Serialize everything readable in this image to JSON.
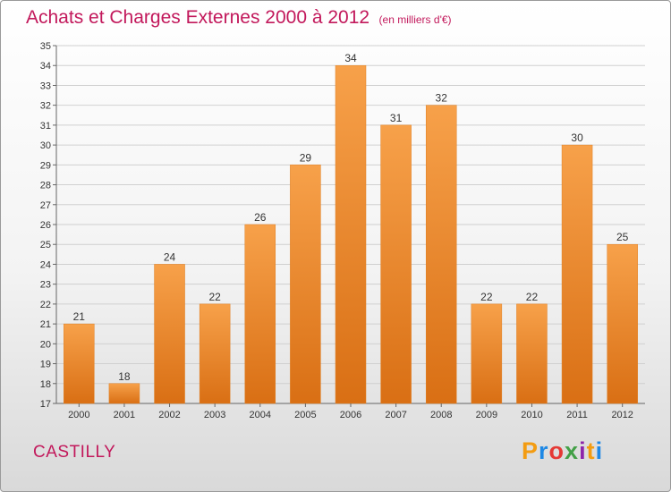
{
  "header": {
    "title": "Achats et Charges Externes 2000 à 2012",
    "unit": "(en milliers d'€)"
  },
  "footer": {
    "commune": "CASTILLY",
    "brand": "Proxiti",
    "brand_colors": [
      "#f39c12",
      "#1e88e5",
      "#e53935",
      "#43a047",
      "#8e24aa",
      "#f39c12",
      "#1e88e5"
    ]
  },
  "chart_data": {
    "type": "bar",
    "categories": [
      "2000",
      "2001",
      "2002",
      "2003",
      "2004",
      "2005",
      "2006",
      "2007",
      "2008",
      "2009",
      "2010",
      "2011",
      "2012"
    ],
    "values": [
      21,
      18,
      24,
      22,
      26,
      29,
      34,
      31,
      32,
      22,
      22,
      30,
      25
    ],
    "ylim": [
      17,
      35
    ],
    "yticks": [
      17,
      18,
      19,
      20,
      21,
      22,
      23,
      24,
      25,
      26,
      27,
      28,
      29,
      30,
      31,
      32,
      33,
      34,
      35
    ],
    "grid": true,
    "bar_color": "#f08a2a",
    "data_labels": true
  }
}
